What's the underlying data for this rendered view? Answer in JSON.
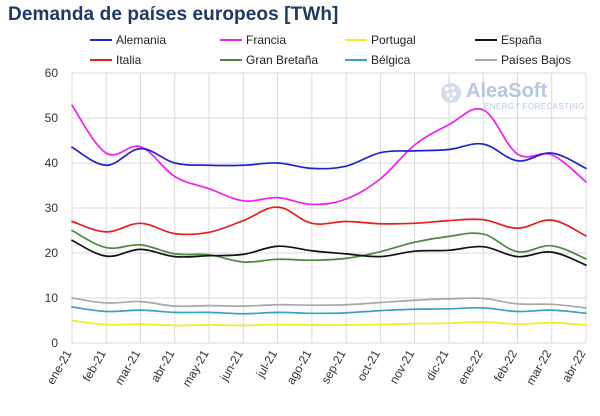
{
  "title": "Demanda de países europeos [TWh]",
  "logo": {
    "name": "AleaSoft",
    "tagline": "ENERGY FORECASTING"
  },
  "colors": {
    "Alemania": "#1f24c8",
    "Francia": "#ee22ee",
    "Portugal": "#eeee22",
    "España": "#111111",
    "Italia": "#e61e1e",
    "Gran Bretaña": "#4a8a3a",
    "Bélgica": "#3aa0c8",
    "Países Bajos": "#a8a8a8"
  },
  "chart_data": {
    "type": "line",
    "title": "Demanda de países europeos [TWh]",
    "xlabel": "",
    "ylabel": "",
    "ylim": [
      0,
      60
    ],
    "yticks": [
      0,
      10,
      20,
      30,
      40,
      50,
      60
    ],
    "grid": true,
    "legend_position": "top",
    "categories": [
      "ene-21",
      "feb-21",
      "mar-21",
      "abr-21",
      "may-21",
      "jun-21",
      "jul-21",
      "ago-21",
      "sep-21",
      "oct-21",
      "nov-21",
      "dic-21",
      "ene-22",
      "feb-22",
      "mar-22",
      "abr-22"
    ],
    "series": [
      {
        "name": "Alemania",
        "values": [
          43.5,
          39.5,
          43.2,
          40.0,
          39.5,
          39.5,
          40.0,
          38.8,
          39.3,
          42.3,
          42.7,
          43.0,
          44.2,
          40.5,
          42.2,
          38.8
        ]
      },
      {
        "name": "Francia",
        "values": [
          52.8,
          42.2,
          43.6,
          37.0,
          34.3,
          31.6,
          32.3,
          30.8,
          32.0,
          36.5,
          44.0,
          48.5,
          51.8,
          42.0,
          41.8,
          35.8
        ]
      },
      {
        "name": "Portugal",
        "values": [
          5.0,
          4.1,
          4.2,
          3.9,
          4.0,
          3.9,
          4.1,
          4.0,
          4.0,
          4.1,
          4.3,
          4.4,
          4.7,
          4.2,
          4.5,
          4.0
        ]
      },
      {
        "name": "España",
        "values": [
          22.8,
          19.3,
          20.8,
          19.2,
          19.4,
          19.7,
          21.5,
          20.5,
          19.8,
          19.2,
          20.4,
          20.6,
          21.4,
          19.2,
          20.2,
          17.3
        ]
      },
      {
        "name": "Italia",
        "values": [
          27.0,
          24.7,
          26.6,
          24.3,
          24.6,
          27.2,
          30.2,
          26.6,
          27.0,
          26.5,
          26.6,
          27.2,
          27.4,
          25.5,
          27.3,
          23.8
        ]
      },
      {
        "name": "Gran Bretaña",
        "values": [
          25.0,
          21.2,
          21.8,
          19.8,
          19.6,
          18.0,
          18.6,
          18.4,
          18.8,
          20.3,
          22.4,
          23.7,
          24.2,
          20.3,
          21.6,
          18.7
        ]
      },
      {
        "name": "Bélgica",
        "values": [
          8.0,
          7.0,
          7.3,
          6.8,
          6.8,
          6.5,
          6.8,
          6.6,
          6.7,
          7.2,
          7.5,
          7.6,
          7.8,
          7.0,
          7.3,
          6.6
        ]
      },
      {
        "name": "Países Bajos",
        "values": [
          10.0,
          8.9,
          9.2,
          8.2,
          8.3,
          8.2,
          8.5,
          8.4,
          8.5,
          9.0,
          9.5,
          9.8,
          9.9,
          8.7,
          8.6,
          7.8
        ]
      }
    ]
  }
}
